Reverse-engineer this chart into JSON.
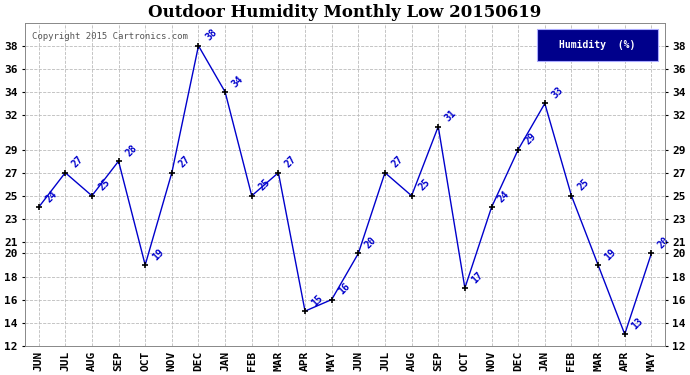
{
  "title": "Outdoor Humidity Monthly Low 20150619",
  "copyright": "Copyright 2015 Cartronics.com",
  "legend_label": "Humidity  (%)",
  "x_labels": [
    "JUN",
    "JUL",
    "AUG",
    "SEP",
    "OCT",
    "NOV",
    "DEC",
    "JAN",
    "FEB",
    "MAR",
    "APR",
    "MAY",
    "JUN",
    "JUL",
    "AUG",
    "SEP",
    "OCT",
    "NOV",
    "DEC",
    "JAN",
    "FEB",
    "MAR",
    "APR",
    "MAY"
  ],
  "y_values": [
    24,
    27,
    25,
    28,
    19,
    27,
    38,
    34,
    25,
    27,
    15,
    16,
    20,
    27,
    25,
    31,
    17,
    24,
    29,
    33,
    25,
    19,
    13,
    20
  ],
  "ylim_min": 12,
  "ylim_max": 40,
  "yticks": [
    12,
    14,
    16,
    18,
    20,
    21,
    23,
    25,
    27,
    29,
    32,
    34,
    36,
    38
  ],
  "line_color": "#0000cc",
  "marker_color": "#000000",
  "bg_color": "#ffffff",
  "plot_bg_color": "#ffffff",
  "title_color": "#000000",
  "label_color": "#0000cc",
  "grid_color": "#bbbbbb",
  "legend_bg": "#00008B",
  "legend_text_color": "#ffffff",
  "copyright_color": "#555555",
  "title_fontsize": 12,
  "tick_fontsize": 8,
  "annot_fontsize": 7
}
